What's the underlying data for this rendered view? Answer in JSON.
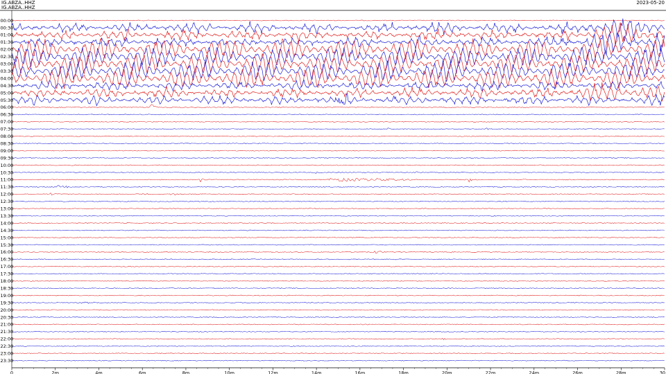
{
  "header": {
    "line1": "IG.ABZA..HHZ",
    "line2": "IG.ABZA..HHZ",
    "date": "2023-05-20"
  },
  "chart_data": {
    "type": "line",
    "title": "",
    "row_labels": [
      "00:00",
      "00:30",
      "01:00",
      "01:30",
      "02:00",
      "02:30",
      "03:00",
      "03:30",
      "04:00",
      "04:30",
      "05:00",
      "05:30",
      "06:00",
      "06:30",
      "07:00",
      "07:30",
      "08:00",
      "08:30",
      "09:00",
      "09:30",
      "10:00",
      "10:30",
      "11:00",
      "11:30",
      "12:00",
      "12:30",
      "13:00",
      "13:30",
      "14:00",
      "14:30",
      "15:00",
      "15:30",
      "16:00",
      "16:30",
      "17:00",
      "17:30",
      "18:00",
      "18:30",
      "19:00",
      "19:30",
      "20:00",
      "20:30",
      "21:00",
      "21:30",
      "22:00",
      "22:30",
      "23:00",
      "23:30"
    ],
    "x_ticks": [
      "0",
      "2m",
      "4m",
      "6m",
      "8m",
      "10m",
      "12m",
      "14m",
      "16m",
      "18m",
      "20m",
      "22m",
      "24m",
      "26m",
      "28m",
      "30"
    ],
    "xlim": [
      0,
      30
    ],
    "colors": {
      "red": "#e11f1f",
      "blue": "#1c1fd6",
      "axis": "#000000"
    },
    "color_cycle": [
      "red",
      "blue"
    ],
    "large_activity": {
      "rows": [
        1,
        11
      ],
      "interval_minutes": [
        0,
        30
      ],
      "note_rows_blue": [
        1,
        3,
        5,
        7,
        9,
        11
      ],
      "note_rows_red": [
        2,
        4,
        6,
        8,
        10
      ]
    },
    "events": [
      {
        "row": 12,
        "minute": 6.4,
        "amplitude": 6,
        "duration_min": 0.3
      },
      {
        "row": 11,
        "minute": 14.9,
        "amplitude": 9,
        "duration_min": 0.7
      },
      {
        "row": 15,
        "minute": 17.3,
        "amplitude": 1.5,
        "duration_min": 0.3
      },
      {
        "row": 15,
        "minute": 21.8,
        "amplitude": 1.5,
        "duration_min": 0.2
      },
      {
        "row": 19,
        "minute": 15.0,
        "amplitude": 1.3,
        "duration_min": 0.4
      },
      {
        "row": 21,
        "minute": 14.0,
        "amplitude": 1.5,
        "duration_min": 0.2
      },
      {
        "row": 21,
        "minute": 18.5,
        "amplitude": 1.5,
        "duration_min": 0.2
      },
      {
        "row": 22,
        "minute": 8.7,
        "amplitude": 3,
        "duration_min": 0.1
      },
      {
        "row": 22,
        "minute": 14.5,
        "amplitude": 2.5,
        "duration_min": 4
      },
      {
        "row": 22,
        "minute": 21.0,
        "amplitude": 5,
        "duration_min": 0.15
      },
      {
        "row": 22,
        "minute": 23.5,
        "amplitude": 1.5,
        "duration_min": 0.2
      },
      {
        "row": 23,
        "minute": 2.0,
        "amplitude": 2,
        "duration_min": 0.8
      },
      {
        "row": 24,
        "minute": 1.8,
        "amplitude": 2.5,
        "duration_min": 0.3
      },
      {
        "row": 24,
        "minute": 7.3,
        "amplitude": 4,
        "duration_min": 0.2
      },
      {
        "row": 24,
        "minute": 6.0,
        "amplitude": 1.5,
        "duration_min": 0.3
      },
      {
        "row": 32,
        "minute": 16.7,
        "amplitude": 2,
        "duration_min": 0.5
      },
      {
        "row": 32,
        "minute": 20.2,
        "amplitude": 1.5,
        "duration_min": 0.3
      },
      {
        "row": 36,
        "minute": 0.8,
        "amplitude": 1.5,
        "duration_min": 0.2
      },
      {
        "row": 39,
        "minute": 3.0,
        "amplitude": 1.5,
        "duration_min": 0.8
      },
      {
        "row": 44,
        "minute": 19.8,
        "amplitude": 1.2,
        "duration_min": 0.2
      }
    ]
  }
}
